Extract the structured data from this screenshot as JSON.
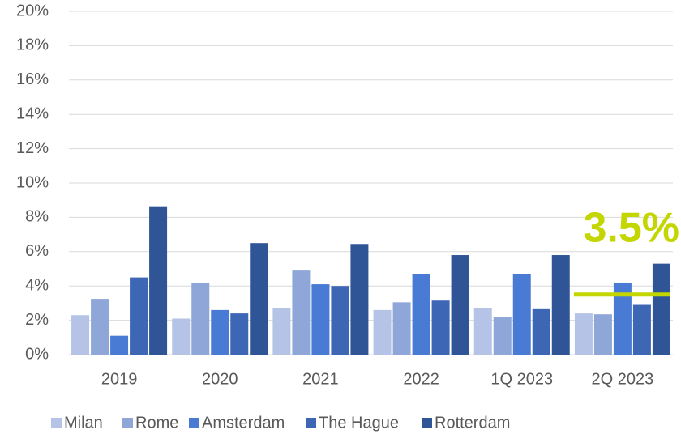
{
  "chart_data": {
    "type": "bar",
    "categories": [
      "2019",
      "2020",
      "2021",
      "2022",
      "1Q 2023",
      "2Q 2023"
    ],
    "series": [
      {
        "name": "Milan",
        "color": "#b4c3e6",
        "values": [
          2.3,
          2.1,
          2.7,
          2.6,
          2.7,
          2.4
        ]
      },
      {
        "name": "Rome",
        "color": "#8fa6d9",
        "values": [
          3.25,
          4.2,
          4.9,
          3.05,
          2.2,
          2.35
        ]
      },
      {
        "name": "Amsterdam",
        "color": "#4a7bd4",
        "values": [
          1.1,
          2.6,
          4.1,
          4.7,
          4.7,
          4.2
        ]
      },
      {
        "name": "The Hague",
        "color": "#3d67b5",
        "values": [
          4.5,
          2.4,
          4.0,
          3.15,
          2.65,
          2.9
        ]
      },
      {
        "name": "Rotterdam",
        "color": "#2f5597",
        "values": [
          8.6,
          6.5,
          6.45,
          5.8,
          5.8,
          5.3
        ]
      }
    ],
    "annotation": {
      "label": "3.5%",
      "value": 3.5,
      "color": "#c4d600"
    },
    "ylim": [
      0,
      20
    ],
    "yticks": [
      {
        "value": 0,
        "label": "0%"
      },
      {
        "value": 2,
        "label": "2%"
      },
      {
        "value": 4,
        "label": "4%"
      },
      {
        "value": 6,
        "label": "6%"
      },
      {
        "value": 8,
        "label": "8%"
      },
      {
        "value": 10,
        "label": "10%"
      },
      {
        "value": 12,
        "label": "12%"
      },
      {
        "value": 14,
        "label": "14%"
      },
      {
        "value": 16,
        "label": "16%"
      },
      {
        "value": 18,
        "label": "18%"
      },
      {
        "value": 20,
        "label": "20%"
      }
    ],
    "grid": true,
    "legend": "bottom"
  }
}
